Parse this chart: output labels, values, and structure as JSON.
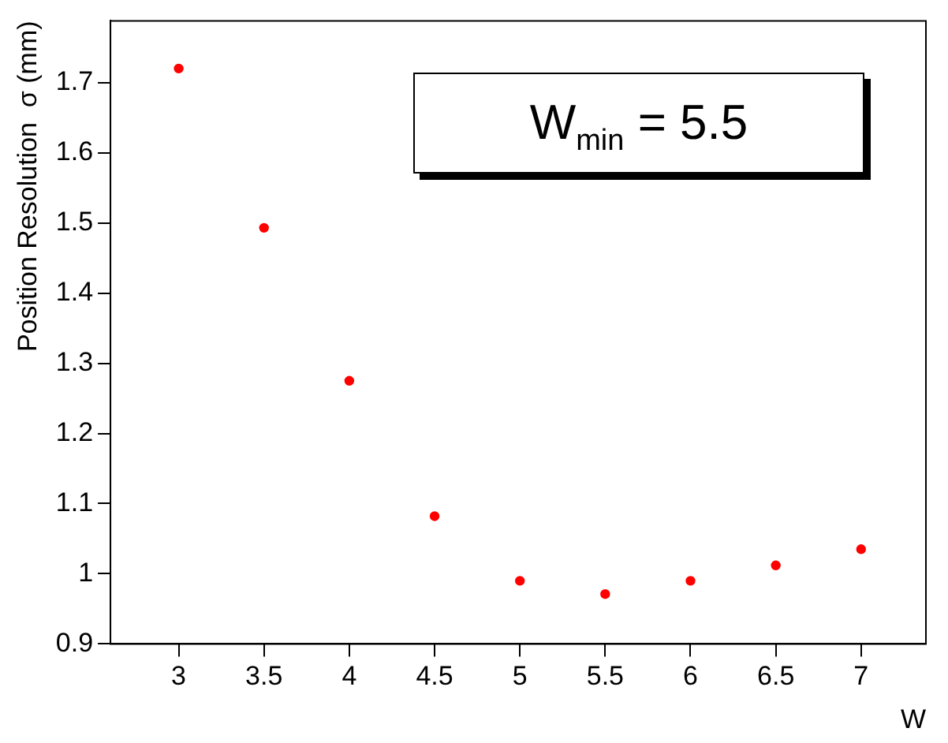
{
  "chart_data": {
    "type": "scatter",
    "xlabel": "W",
    "ylabel": "Position Resolution  σ (mm)",
    "x": [
      3,
      3.5,
      4,
      4.5,
      5,
      5.5,
      6,
      6.5,
      7
    ],
    "series": [
      {
        "color": "#ff0000",
        "values": [
          1.72,
          1.493,
          1.275,
          1.082,
          0.99,
          0.971,
          0.99,
          1.012,
          1.035
        ]
      }
    ],
    "xlim": [
      2.6,
      7.38
    ],
    "ylim": [
      0.9,
      1.788
    ],
    "xticks": [
      3,
      3.5,
      4,
      4.5,
      5,
      5.5,
      6,
      6.5,
      7
    ],
    "yticks": [
      0.9,
      1,
      1.1,
      1.2,
      1.3,
      1.4,
      1.5,
      1.6,
      1.7
    ],
    "annotations": [
      "W$_{min}$ = 5.5"
    ],
    "grid": false,
    "legend": false,
    "marker": "circle"
  }
}
